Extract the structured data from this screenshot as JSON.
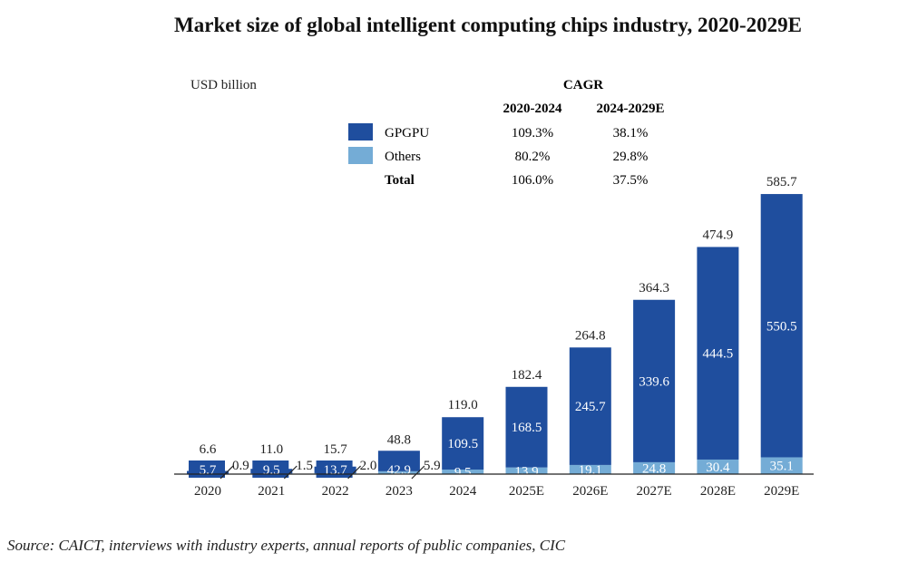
{
  "chart_data": {
    "type": "bar",
    "stacked": true,
    "title": "Market size of global intelligent computing chips industry, 2020-2029E",
    "ylabel": "USD billion",
    "categories": [
      "2020",
      "2021",
      "2022",
      "2023",
      "2024",
      "2025E",
      "2026E",
      "2027E",
      "2028E",
      "2029E"
    ],
    "series": [
      {
        "name": "Others",
        "color": "#74acd6",
        "values": [
          0.9,
          1.5,
          2.0,
          5.9,
          9.5,
          13.9,
          19.1,
          24.8,
          30.4,
          35.1
        ]
      },
      {
        "name": "GPGPU",
        "color": "#1f4e9e",
        "values": [
          5.7,
          9.5,
          13.7,
          42.9,
          109.5,
          168.5,
          245.7,
          339.6,
          444.5,
          550.5
        ]
      }
    ],
    "totals": [
      "6.6",
      "11.0",
      "15.7",
      "48.8",
      "119.0",
      "182.4",
      "264.8",
      "364.3",
      "474.9",
      "585.7"
    ],
    "labels": {
      "GPGPU": [
        "5.7",
        "9.5",
        "13.7",
        "42.9",
        "109.5",
        "168.5",
        "245.7",
        "339.6",
        "444.5",
        "550.5"
      ],
      "Others": [
        "0.9",
        "1.5",
        "2.0",
        "5.9",
        "9.5",
        "13.9",
        "19.1",
        "24.8",
        "30.4",
        "35.1"
      ]
    },
    "ylim": [
      0,
      600
    ],
    "grid": false,
    "legend": {
      "placement": "top-center",
      "entries": [
        "GPGPU",
        "Others"
      ]
    },
    "cagr_table": {
      "title": "CAGR",
      "columns": [
        "2020-2024",
        "2024-2029E"
      ],
      "rows": [
        {
          "name": "GPGPU",
          "values": [
            "109.3%",
            "38.1%"
          ]
        },
        {
          "name": "Others",
          "values": [
            "80.2%",
            "29.8%"
          ]
        },
        {
          "name": "Total",
          "values": [
            "106.0%",
            "37.5%"
          ]
        }
      ]
    },
    "source": "Source: CAICT, interviews with industry experts, annual reports of public companies, CIC"
  }
}
